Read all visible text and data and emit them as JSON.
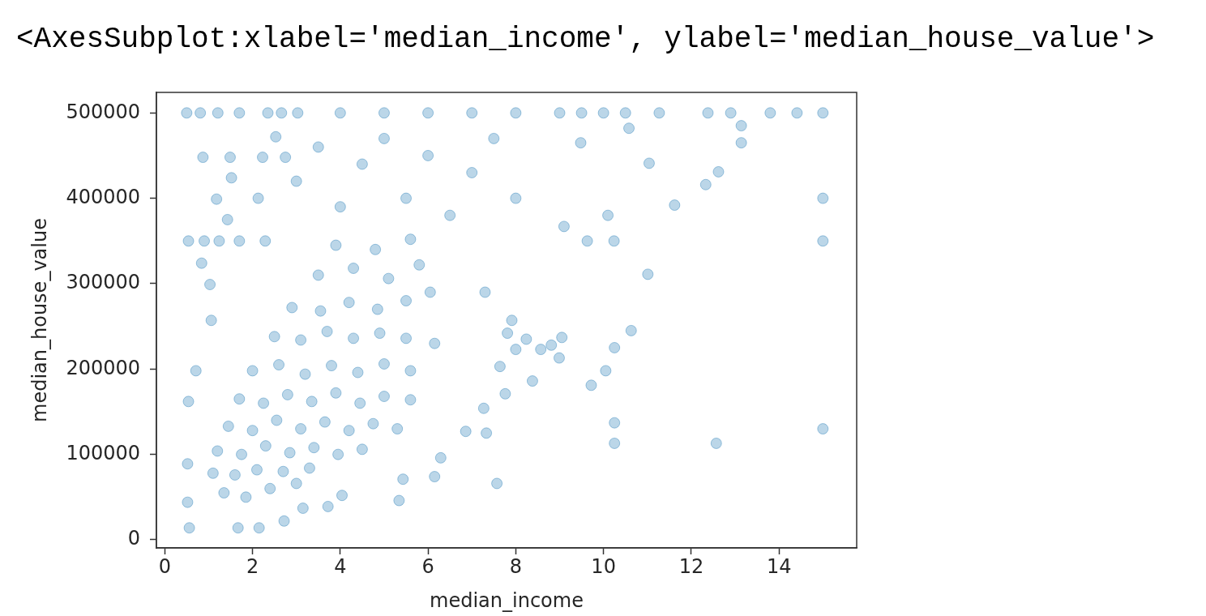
{
  "chart_data": {
    "type": "scatter",
    "annotations": [
      "<AxesSubplot:xlabel='median_income', ylabel='median_house_value'>"
    ],
    "xlabel": "median_income",
    "ylabel": "median_house_value",
    "color": "#1f77b4",
    "marker": "circle",
    "xlim": [
      -0.19,
      15.77
    ],
    "ylim": [
      -9500,
      524000
    ],
    "xticks": [
      0,
      2,
      4,
      6,
      8,
      10,
      12,
      14
    ],
    "yticks": [
      0,
      100000,
      200000,
      300000,
      400000,
      500000
    ],
    "x": [
      0.5,
      0.81,
      1.21,
      1.7,
      2.35,
      2.66,
      3.03,
      4.0,
      5.0,
      6.0,
      7.0,
      8.0,
      9.0,
      9.5,
      10.0,
      10.5,
      11.27,
      12.38,
      12.9,
      13.8,
      14.41,
      15.0,
      15.0,
      15.0,
      15.0,
      12.57,
      10.25,
      10.25,
      9.72,
      10.05,
      10.63,
      10.25,
      7.57,
      12.62,
      12.33,
      11.62,
      13.14,
      13.14,
      11.04,
      11.01,
      10.24,
      9.63,
      10.1,
      9.1,
      9.48,
      10.58,
      9.05,
      8.99,
      8.81,
      8.57,
      8.24,
      8.38,
      7.76,
      8.0,
      7.91,
      7.81,
      5.34,
      6.15,
      5.43,
      6.86,
      7.33,
      7.27,
      6.29,
      4.04,
      3.72,
      2.72,
      2.15,
      1.67,
      0.56,
      3.15,
      0.52,
      0.52,
      0.54,
      0.71,
      1.06,
      7.64,
      0.87,
      1.49,
      2.23,
      2.75,
      0.54,
      0.9,
      1.24,
      1.7,
      2.29,
      1.18,
      1.52,
      0.84,
      1.03,
      1.43,
      2.13,
      2.53,
      3.0,
      3.5,
      4.0,
      4.5,
      5.0,
      5.5,
      6.0,
      6.5,
      7.0,
      7.5,
      8.0,
      7.3,
      1.35,
      1.85,
      2.4,
      3.0,
      1.1,
      1.6,
      2.1,
      2.7,
      3.3,
      1.2,
      1.75,
      2.3,
      2.85,
      3.4,
      3.95,
      4.5,
      1.45,
      2.0,
      2.55,
      3.1,
      3.65,
      4.2,
      4.75,
      5.3,
      1.7,
      2.25,
      2.8,
      3.35,
      3.9,
      4.45,
      5.0,
      5.6,
      2.0,
      2.6,
      3.2,
      3.8,
      4.4,
      5.0,
      5.6,
      6.15,
      2.5,
      3.1,
      3.7,
      4.3,
      4.9,
      5.5,
      2.9,
      3.55,
      4.2,
      4.85,
      5.5,
      6.05,
      3.5,
      4.3,
      5.1,
      5.8,
      3.9,
      4.8,
      5.6
    ],
    "values": [
      500000,
      500000,
      500000,
      500000,
      500000,
      500000,
      500000,
      500000,
      500000,
      500000,
      500000,
      500000,
      500000,
      500000,
      500000,
      500000,
      500000,
      500000,
      500000,
      500000,
      500000,
      500000,
      400000,
      350000,
      130000,
      113000,
      113000,
      137000,
      181000,
      198000,
      245000,
      225000,
      66000,
      431000,
      416000,
      392000,
      485000,
      465000,
      441000,
      311000,
      350000,
      350000,
      380000,
      367000,
      465000,
      482000,
      237000,
      213000,
      228000,
      223000,
      235000,
      186000,
      171000,
      223000,
      257000,
      242000,
      46000,
      74000,
      71000,
      127000,
      125000,
      154000,
      96000,
      52000,
      39000,
      22000,
      14000,
      14000,
      14000,
      37000,
      44000,
      89000,
      162000,
      198000,
      257000,
      203000,
      448000,
      448000,
      448000,
      448000,
      350000,
      350000,
      350000,
      350000,
      350000,
      399000,
      424000,
      324000,
      299000,
      375000,
      400000,
      472000,
      420000,
      460000,
      390000,
      440000,
      470000,
      400000,
      450000,
      380000,
      430000,
      470000,
      400000,
      290000,
      55000,
      50000,
      60000,
      66000,
      78000,
      76000,
      82000,
      80000,
      84000,
      104000,
      100000,
      110000,
      102000,
      108000,
      100000,
      106000,
      133000,
      128000,
      140000,
      130000,
      138000,
      128000,
      136000,
      130000,
      165000,
      160000,
      170000,
      162000,
      172000,
      160000,
      168000,
      164000,
      198000,
      205000,
      194000,
      204000,
      196000,
      206000,
      198000,
      230000,
      238000,
      234000,
      244000,
      236000,
      242000,
      236000,
      272000,
      268000,
      278000,
      270000,
      280000,
      290000,
      310000,
      318000,
      306000,
      322000,
      345000,
      340000,
      352000
    ]
  }
}
